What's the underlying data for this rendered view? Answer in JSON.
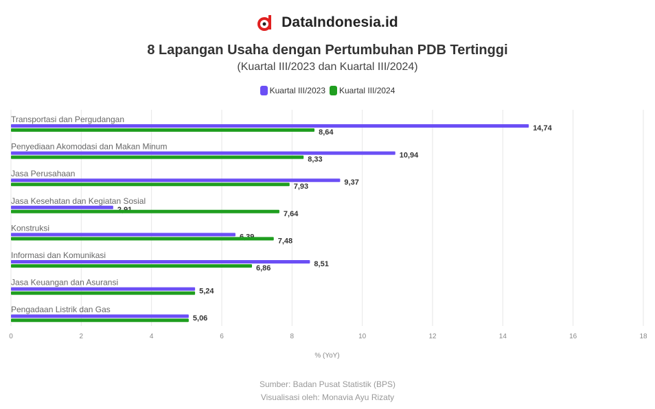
{
  "brand": {
    "name": "DataIndonesia.id",
    "logo_icon": "dataindonesia-logo-icon",
    "logo_color": "#e02020"
  },
  "chart_data": {
    "type": "bar",
    "orientation": "horizontal",
    "title": "8 Lapangan Usaha dengan Pertumbuhan PDB Tertinggi",
    "subtitle": "(Kuartal III/2023 dan Kuartal III/2024)",
    "xlabel": "% (YoY)",
    "ylabel": "",
    "xlim": [
      0,
      18
    ],
    "xticks": [
      0,
      2,
      4,
      6,
      8,
      10,
      12,
      14,
      16,
      18
    ],
    "grid": true,
    "legend_position": "top-center",
    "categories": [
      "Transportasi dan Pergudangan",
      "Penyediaan Akomodasi dan Makan Minum",
      "Jasa Perusahaan",
      "Jasa Kesehatan dan Kegiatan Sosial",
      "Konstruksi",
      "Informasi dan Komunikasi",
      "Jasa Keuangan dan Asuransi",
      "Pengadaan Listrik dan Gas"
    ],
    "series": [
      {
        "name": "Kuartal III/2023",
        "color": "#6b4ff5",
        "values": [
          14.74,
          10.94,
          9.37,
          2.91,
          6.39,
          8.51,
          5.24,
          5.06
        ],
        "labels": [
          "14,74",
          "10,94",
          "9,37",
          "2,91",
          "6,39",
          "8,51",
          "5,24",
          "5,06"
        ]
      },
      {
        "name": "Kuartal III/2024",
        "color": "#1f9e1f",
        "values": [
          8.64,
          8.33,
          7.93,
          7.64,
          7.48,
          6.86,
          5.24,
          5.06
        ],
        "labels": [
          "8,64",
          "8,33",
          "7,93",
          "7,64",
          "7,48",
          "6,86",
          "",
          ""
        ]
      }
    ]
  },
  "footer": {
    "source": "Sumber: Badan Pusat Statistik (BPS)",
    "credit": "Visualisasi oleh: Monavia Ayu Rizaty"
  }
}
